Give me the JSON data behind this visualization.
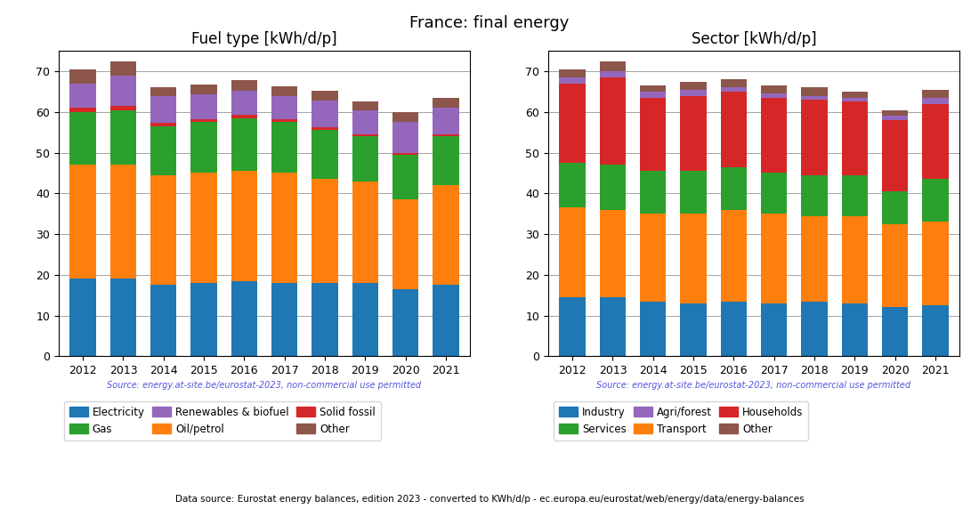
{
  "title": "France: final energy",
  "years": [
    2012,
    2013,
    2014,
    2015,
    2016,
    2017,
    2018,
    2019,
    2020,
    2021
  ],
  "fuel_title": "Fuel type [kWh/d/p]",
  "fuel_electricity": [
    19.0,
    19.0,
    17.5,
    18.0,
    18.5,
    18.0,
    18.0,
    18.0,
    16.5,
    17.5
  ],
  "fuel_oil": [
    28.0,
    28.0,
    27.0,
    27.0,
    27.0,
    27.0,
    25.5,
    25.0,
    22.0,
    24.5
  ],
  "fuel_gas": [
    13.0,
    13.5,
    12.0,
    12.5,
    13.0,
    12.5,
    12.0,
    11.0,
    11.0,
    12.0
  ],
  "fuel_solid": [
    1.0,
    1.0,
    0.8,
    0.8,
    0.8,
    0.8,
    0.8,
    0.5,
    0.5,
    0.5
  ],
  "fuel_renewables": [
    6.0,
    7.5,
    6.5,
    6.0,
    6.0,
    5.5,
    6.5,
    6.0,
    7.5,
    6.5
  ],
  "fuel_other": [
    3.5,
    3.5,
    2.2,
    2.5,
    2.5,
    2.5,
    2.5,
    2.0,
    2.5,
    2.5
  ],
  "sector_title": "Sector [kWh/d/p]",
  "sector_industry": [
    14.5,
    14.5,
    13.5,
    13.0,
    13.5,
    13.0,
    13.5,
    13.0,
    12.0,
    12.5
  ],
  "sector_transport": [
    22.0,
    21.5,
    21.5,
    22.0,
    22.5,
    22.0,
    21.0,
    21.5,
    20.5,
    20.5
  ],
  "sector_services": [
    11.0,
    11.0,
    10.5,
    10.5,
    10.5,
    10.0,
    10.0,
    10.0,
    8.0,
    10.5
  ],
  "sector_households": [
    19.5,
    21.5,
    18.0,
    18.5,
    18.5,
    18.5,
    18.5,
    18.0,
    17.5,
    18.5
  ],
  "sector_agriforest": [
    1.5,
    1.5,
    1.5,
    1.5,
    1.0,
    1.0,
    1.0,
    1.0,
    1.0,
    1.5
  ],
  "sector_other": [
    2.0,
    2.5,
    1.5,
    2.0,
    2.0,
    2.0,
    2.0,
    1.5,
    1.5,
    2.0
  ],
  "color_electricity": "#1f77b4",
  "color_oil": "#ff7f0e",
  "color_gas": "#2ca02c",
  "color_solid": "#d62728",
  "color_renewables": "#9467bd",
  "color_other_fuel": "#8c564b",
  "color_industry": "#1f77b4",
  "color_transport": "#ff7f0e",
  "color_households": "#d62728",
  "color_services": "#2ca02c",
  "color_agriforest": "#9467bd",
  "color_other_sector": "#8c564b",
  "source_text": "Source: energy.at-site.be/eurostat-2023, non-commercial use permitted",
  "footer_text": "Data source: Eurostat energy balances, edition 2023 - converted to KWh/d/p - ec.europa.eu/eurostat/web/energy/data/energy-balances",
  "ylim": [
    0,
    75
  ],
  "yticks": [
    0,
    10,
    20,
    30,
    40,
    50,
    60,
    70
  ]
}
